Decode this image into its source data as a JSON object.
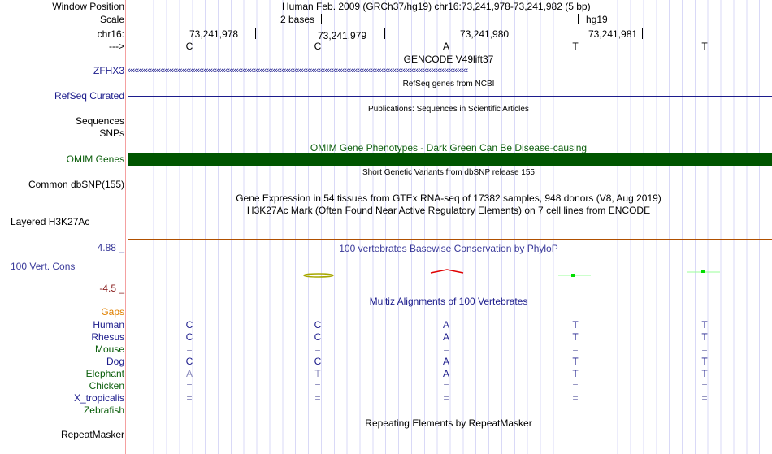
{
  "labels": {
    "window_position": "Window Position",
    "scale": "Scale",
    "chrom": "chr16:",
    "strand": "--->",
    "zfhx3": "ZFHX3",
    "refseq": "RefSeq Curated",
    "sequences": "Sequences",
    "snps": "SNPs",
    "omim": "OMIM Genes",
    "common_dbsnp": "Common dbSNP(155)",
    "layered": "Layered H3K27Ac",
    "phylop_max": "4.88 _",
    "phylop_name": "100 Vert. Cons",
    "phylop_min": "-4.5 _",
    "gaps": "Gaps",
    "repeatmasker": "RepeatMasker"
  },
  "header": {
    "assembly": "Human Feb. 2009 (GRCh37/hg19)   chr16:73,241,978-73,241,982 (5 bp)",
    "scale_text": "2 bases",
    "scale_db": "hg19"
  },
  "positions": [
    "73,241,978",
    "73,241,979",
    "73,241,980",
    "73,241,981"
  ],
  "bases": [
    "C",
    "C",
    "A",
    "T",
    "T"
  ],
  "tracks": {
    "gencode": "GENCODE V49lift37",
    "refseq": "RefSeq genes from NCBI",
    "publications": "Publications: Sequences in Scientific Articles",
    "omim": "OMIM Gene Phenotypes - Dark Green Can Be Disease-causing",
    "dbsnp": "Short Genetic Variants from dbSNP release 155",
    "gtex": "Gene Expression in 54 tissues from GTEx RNA-seq of 17382 samples, 948 donors (V8, Aug 2019)",
    "h3k27ac": "H3K27Ac Mark (Often Found Near Active Regulatory Elements) on 7 cell lines from ENCODE",
    "phylop": "100 vertebrates Basewise Conservation by PhyloP",
    "multiz": "Multiz Alignments of 100 Vertebrates",
    "rmsk": "Repeating Elements by RepeatMasker"
  },
  "species": [
    {
      "name": "Human",
      "bases": [
        "C",
        "C",
        "A",
        "T",
        "T"
      ],
      "color": "#1c1c8c"
    },
    {
      "name": "Rhesus",
      "bases": [
        "C",
        "C",
        "A",
        "T",
        "T"
      ],
      "color": "#1c1c8c"
    },
    {
      "name": "Mouse",
      "bases": [
        "=",
        "=",
        "=",
        "=",
        "="
      ],
      "color": "#0b5e0b"
    },
    {
      "name": "Dog",
      "bases": [
        "C",
        "C",
        "A",
        "T",
        "T"
      ],
      "color": "#1c1c8c"
    },
    {
      "name": "Elephant",
      "bases": [
        "A",
        "T",
        "A",
        "T",
        "T"
      ],
      "color": "#0b5e0b"
    },
    {
      "name": "Chicken",
      "bases": [
        "=",
        "=",
        "=",
        "=",
        "="
      ],
      "color": "#0b5e0b"
    },
    {
      "name": "X_tropicalis",
      "bases": [
        "=",
        "=",
        "=",
        "=",
        "="
      ],
      "color": "#1c1c8c"
    },
    {
      "name": "Zebrafish",
      "bases": [
        "",
        "",
        "",
        "",
        ""
      ],
      "color": "#0b5e0b"
    }
  ],
  "colors": {
    "navy": "#1c1c8c",
    "omim": "#005500",
    "h3k27ac": "#b05000",
    "gaps": "#e08000"
  }
}
